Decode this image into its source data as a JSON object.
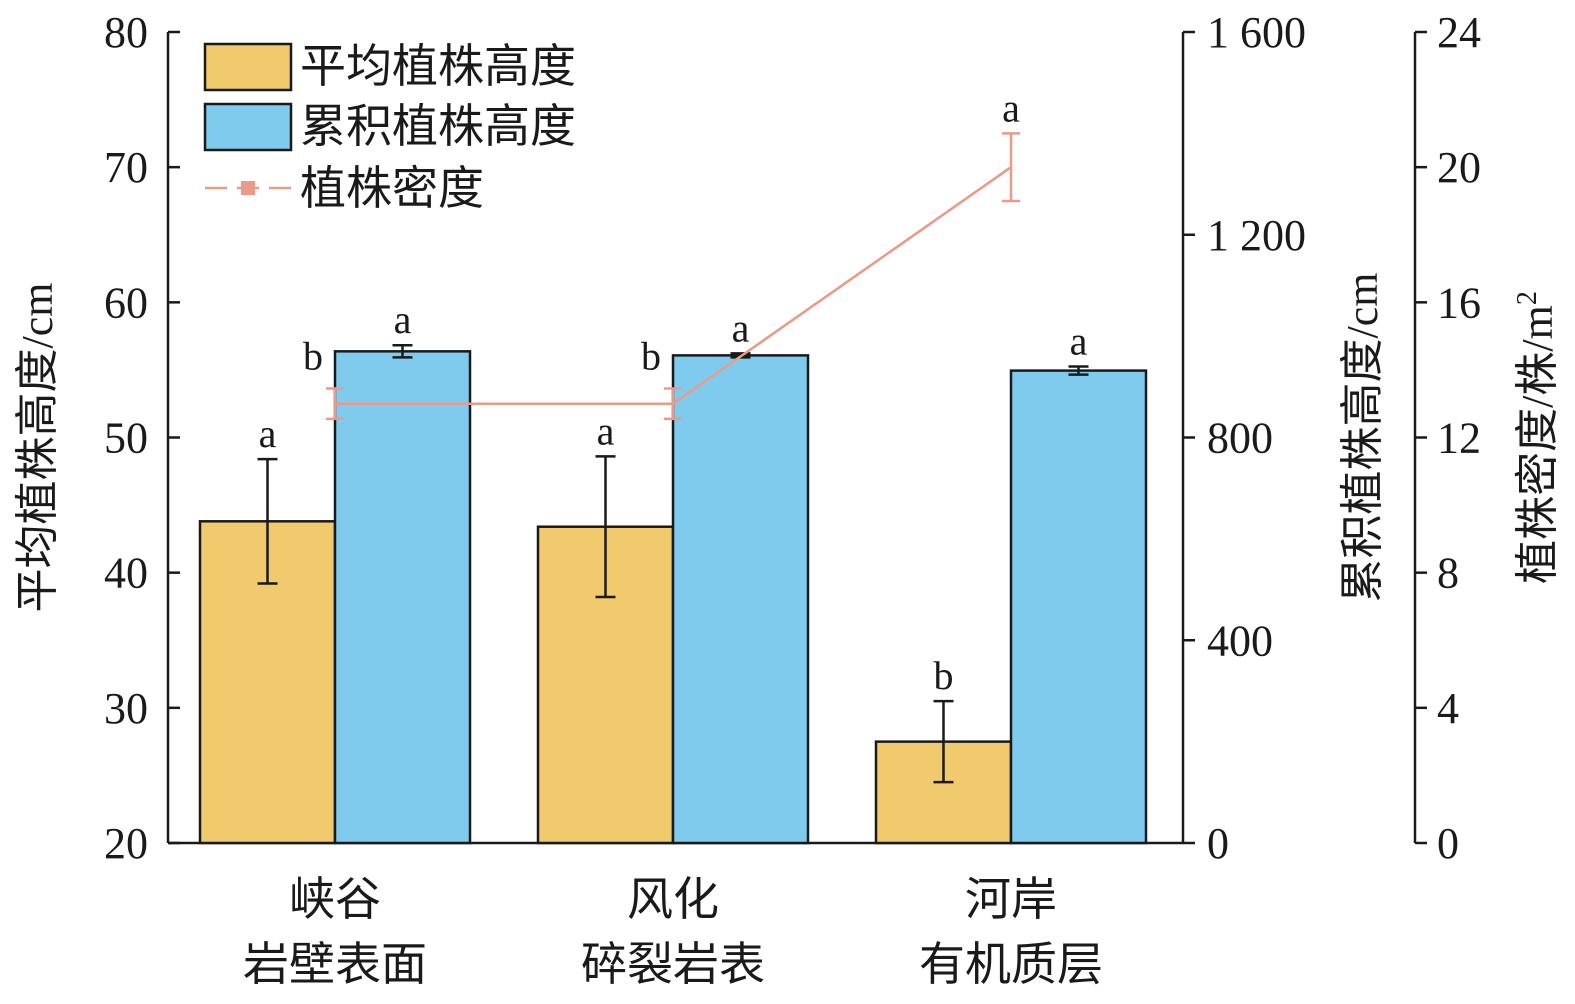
{
  "chart_data": {
    "type": "bar",
    "categories": [
      [
        "峡谷",
        "岩壁表面"
      ],
      [
        "风化",
        "碎裂岩表"
      ],
      [
        "河岸",
        "有机质层"
      ]
    ],
    "series": [
      {
        "name": "平均植株高度",
        "kind": "bar",
        "axis": "left",
        "color": "#F2CA6E",
        "values": [
          43.8,
          43.4,
          27.5
        ],
        "errors": [
          4.6,
          5.2,
          3.0
        ],
        "significance": [
          "a",
          "a",
          "b"
        ]
      },
      {
        "name": "累积植株高度",
        "kind": "bar",
        "axis": "right1",
        "color": "#7ECBEE",
        "values": [
          970,
          962,
          932
        ],
        "errors": [
          12,
          4,
          8
        ],
        "significance": [
          "a",
          "a",
          "a"
        ]
      },
      {
        "name": "植株密度",
        "kind": "line",
        "axis": "right2",
        "color": "#EB9A88",
        "values": [
          13.0,
          13.0,
          20.0
        ],
        "errors": [
          0.45,
          0.45,
          1.0
        ],
        "significance": [
          "b",
          "b",
          "a"
        ]
      }
    ],
    "axes": {
      "left": {
        "label": "平均植株高度/cm",
        "ylim": [
          20,
          80
        ],
        "ticks": [
          "20",
          "30",
          "40",
          "50",
          "60",
          "70",
          "80"
        ],
        "tick_values": [
          20,
          30,
          40,
          50,
          60,
          70,
          80
        ]
      },
      "right1": {
        "label": "累积植株高度/cm",
        "ylim": [
          0,
          1600
        ],
        "ticks": [
          "0",
          "400",
          "800",
          "1 200",
          "1 600"
        ],
        "tick_values": [
          0,
          400,
          800,
          1200,
          1600
        ]
      },
      "right2": {
        "label_main": "植株密度/株/m",
        "label_sup": "2",
        "ylim": [
          0,
          24
        ],
        "ticks": [
          "0",
          "4",
          "8",
          "12",
          "16",
          "20",
          "24"
        ],
        "tick_values": [
          0,
          4,
          8,
          12,
          16,
          20,
          24
        ]
      }
    },
    "legend_position": "top-left",
    "grid": false
  }
}
